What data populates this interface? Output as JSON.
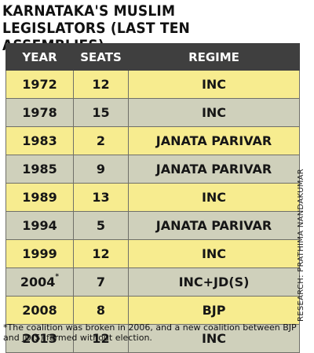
{
  "title": "KARNATAKA'S MUSLIM LEGISLATORS (LAST TEN ASSEMBLIES)",
  "columns": [
    "YEAR",
    "SEATS",
    "REGIME"
  ],
  "rows": [
    {
      "year": "1972",
      "mark": "",
      "seats": "12",
      "regime": "INC"
    },
    {
      "year": "1978",
      "mark": "",
      "seats": "15",
      "regime": "INC"
    },
    {
      "year": "1983",
      "mark": "",
      "seats": "2",
      "regime": "JANATA PARIVAR"
    },
    {
      "year": "1985",
      "mark": "",
      "seats": "9",
      "regime": "JANATA PARIVAR"
    },
    {
      "year": "1989",
      "mark": "",
      "seats": "13",
      "regime": "INC"
    },
    {
      "year": "1994",
      "mark": "",
      "seats": "5",
      "regime": "JANATA PARIVAR"
    },
    {
      "year": "1999",
      "mark": "",
      "seats": "12",
      "regime": "INC"
    },
    {
      "year": "2004",
      "mark": "*",
      "seats": "7",
      "regime": "INC+JD(S)"
    },
    {
      "year": "2008",
      "mark": "",
      "seats": "8",
      "regime": "BJP"
    },
    {
      "year": "2013",
      "mark": "",
      "seats": "12",
      "regime": "INC"
    }
  ],
  "credit": "RESEARCH: PRATHIMA NANDAKUMAR",
  "footnote": "*The coalition was broken in 2006, and a new coalition between BJP and JD(S) formed without election.",
  "colors": {
    "header": "#3f3f3f",
    "row_odd": "#f7ec8f",
    "row_even": "#cfd0bb"
  }
}
